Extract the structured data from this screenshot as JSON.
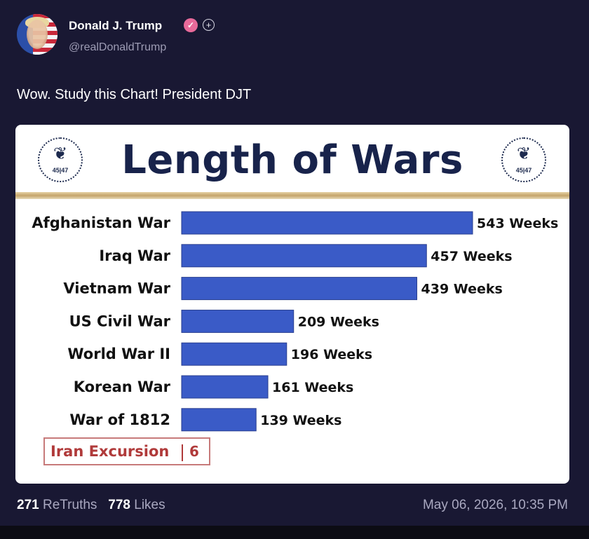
{
  "post": {
    "author_name": "Donald J. Trump",
    "verified_icon": "verified-badge-icon",
    "handle": "@realDonaldTrump",
    "text": "Wow. Study this Chart! President DJT",
    "retruths_count": "271",
    "retruths_label": "ReTruths",
    "likes_count": "778",
    "likes_label": "Likes",
    "timestamp": "May 06, 2026, 10:35 PM"
  },
  "image": {
    "seal_text": "45|47",
    "seal_icon": "eagle-seal-icon",
    "colors": {
      "bar": "#3a5bc7",
      "title": "#18234b",
      "highlight": "#b03a3a",
      "gold": "#c4a46a"
    }
  },
  "chart_data": {
    "type": "bar",
    "orientation": "horizontal",
    "title": "Length of Wars",
    "categories": [
      "Afghanistan War",
      "Iraq War",
      "Vietnam War",
      "US Civil War",
      "World War II",
      "Korean War",
      "War of 1812"
    ],
    "values": [
      543,
      457,
      439,
      209,
      196,
      161,
      139
    ],
    "value_labels": [
      "543 Weeks",
      "457 Weeks",
      "439 Weeks",
      "209 Weeks",
      "196 Weeks",
      "161 Weeks",
      "139 Weeks"
    ],
    "highlight": {
      "label": "Iran Excursion",
      "value": "6"
    },
    "xlim": [
      0,
      543
    ],
    "grid": false
  }
}
